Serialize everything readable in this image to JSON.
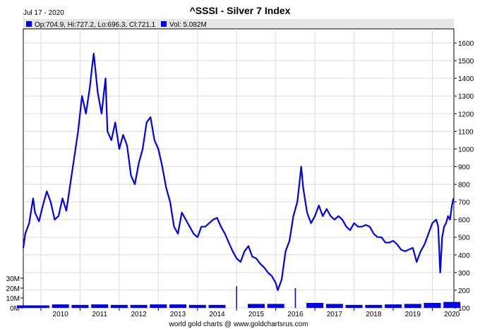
{
  "header": {
    "date": "Jul 17 - 2020",
    "title": "^SSSI - Silver 7 Index"
  },
  "legend": {
    "ohlc_text": "Op:704.9, Hi:727.2, Lo:696.3, Cl:721.1",
    "vol_text": "Vol: 5.082M"
  },
  "footer": {
    "credit": "world gold charts @ www.goldchartsrus.com"
  },
  "colors": {
    "series": "#0000ee",
    "legend_bar": "#e6e6e6",
    "grid": "#dcdcdc"
  },
  "chart_data": {
    "type": "line",
    "title": "^SSSI - Silver 7 Index",
    "x_ticks": [
      "2010",
      "2011",
      "2012",
      "2013",
      "2014",
      "2015",
      "2016",
      "2017",
      "2018",
      "2019",
      "2020"
    ],
    "y_ticks": [
      "100",
      "200",
      "300",
      "400",
      "500",
      "600",
      "700",
      "800",
      "900",
      "1000",
      "1100",
      "1200",
      "1300",
      "1400",
      "1500",
      "1600"
    ],
    "vol_ticks": [
      "0M",
      "10M",
      "20M",
      "30M"
    ],
    "xlim": [
      2009.55,
      2020.55
    ],
    "ylim": [
      100,
      1680
    ],
    "vol_ylim": [
      0,
      35
    ],
    "grid": true,
    "series": [
      {
        "values_label": "price",
        "x": [
          2009.55,
          2009.6,
          2009.7,
          2009.8,
          2009.85,
          2009.95,
          2010.05,
          2010.15,
          2010.25,
          2010.35,
          2010.45,
          2010.55,
          2010.65,
          2010.75,
          2010.85,
          2010.95,
          2011.05,
          2011.15,
          2011.25,
          2011.3,
          2011.35,
          2011.45,
          2011.55,
          2011.65,
          2011.7,
          2011.8,
          2011.9,
          2012.0,
          2012.1,
          2012.2,
          2012.3,
          2012.4,
          2012.5,
          2012.6,
          2012.7,
          2012.8,
          2012.9,
          2013.0,
          2013.1,
          2013.2,
          2013.3,
          2013.4,
          2013.5,
          2013.6,
          2013.7,
          2013.8,
          2013.9,
          2014.0,
          2014.1,
          2014.2,
          2014.3,
          2014.4,
          2014.5,
          2014.6,
          2014.7,
          2014.8,
          2014.9,
          2015.0,
          2015.1,
          2015.2,
          2015.3,
          2015.4,
          2015.5,
          2015.6,
          2015.7,
          2015.8,
          2015.9,
          2016.0,
          2016.05,
          2016.15,
          2016.25,
          2016.35,
          2016.45,
          2016.55,
          2016.6,
          2016.65,
          2016.7,
          2016.8,
          2016.9,
          2017.0,
          2017.1,
          2017.2,
          2017.3,
          2017.4,
          2017.5,
          2017.6,
          2017.7,
          2017.8,
          2017.9,
          2018.0,
          2018.1,
          2018.2,
          2018.3,
          2018.4,
          2018.5,
          2018.6,
          2018.7,
          2018.8,
          2018.9,
          2019.0,
          2019.1,
          2019.2,
          2019.3,
          2019.4,
          2019.5,
          2019.6,
          2019.7,
          2019.8,
          2019.9,
          2020.0,
          2020.1,
          2020.15,
          2020.2,
          2020.25,
          2020.3,
          2020.35,
          2020.4,
          2020.45,
          2020.5,
          2020.54
        ],
        "values": [
          440,
          520,
          580,
          720,
          640,
          590,
          680,
          760,
          700,
          600,
          620,
          720,
          650,
          800,
          950,
          1100,
          1300,
          1200,
          1350,
          1450,
          1540,
          1320,
          1200,
          1400,
          1100,
          1050,
          1150,
          1000,
          1080,
          1020,
          850,
          800,
          920,
          1000,
          1150,
          1180,
          1050,
          1000,
          900,
          780,
          700,
          560,
          520,
          640,
          600,
          560,
          520,
          500,
          560,
          560,
          580,
          600,
          610,
          560,
          520,
          470,
          420,
          380,
          360,
          420,
          450,
          390,
          380,
          350,
          330,
          300,
          280,
          240,
          200,
          260,
          420,
          480,
          620,
          700,
          800,
          900,
          780,
          640,
          580,
          620,
          680,
          620,
          660,
          620,
          600,
          620,
          600,
          560,
          540,
          580,
          560,
          560,
          570,
          560,
          520,
          500,
          500,
          470,
          470,
          480,
          460,
          430,
          420,
          430,
          440,
          360,
          420,
          460,
          520,
          580,
          600,
          560,
          300,
          500,
          560,
          580,
          620,
          600,
          680,
          720
        ]
      }
    ],
    "volume": {
      "x": [
        2009.6,
        2010.0,
        2010.5,
        2011.0,
        2011.5,
        2012.0,
        2012.5,
        2013.0,
        2013.5,
        2014.0,
        2014.5,
        2015.0,
        2015.5,
        2016.0,
        2016.5,
        2017.0,
        2017.5,
        2018.0,
        2018.5,
        2019.0,
        2019.5,
        2020.0,
        2020.5
      ],
      "values": [
        2.5,
        2.5,
        3.5,
        3.0,
        3.5,
        3.0,
        3.0,
        3.5,
        3.5,
        3.0,
        3.0,
        22,
        4,
        4,
        20,
        5,
        4,
        3,
        3,
        3.5,
        4,
        5,
        6
      ]
    }
  }
}
